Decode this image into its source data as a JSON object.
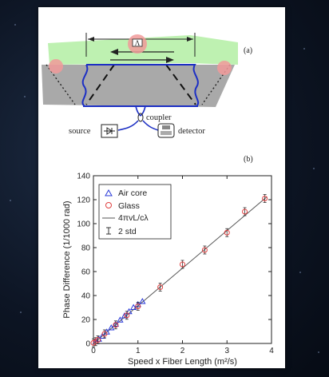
{
  "figure": {
    "panel_a_label": "(a)",
    "panel_b_label": "(b)",
    "diagram": {
      "lambda_label": "Λ",
      "coupler_label": "coupler",
      "source_label": "source",
      "detector_label": "detector"
    }
  },
  "colors": {
    "fiber": "#1c2fc4",
    "air_core": "#2a3ad8",
    "glass": "#e04040",
    "fit_line": "#555555",
    "flow_green": "#b7f0a8",
    "platform_gray": "#a9a9a9"
  },
  "chart_data": {
    "type": "scatter",
    "title": "",
    "xlabel": "Speed x Fiber Length (m²/s)",
    "ylabel": "Phase Difference (1/1000 rad)",
    "xlim": [
      0,
      4
    ],
    "ylim": [
      0,
      140
    ],
    "xticks": [
      "0",
      "1",
      "2",
      "3",
      "4"
    ],
    "yticks": [
      "0",
      "20",
      "40",
      "60",
      "80",
      "100",
      "120",
      "140"
    ],
    "grid": false,
    "legend_position": "top-left",
    "legend": [
      "Air core",
      "Glass",
      "4πvL/cλ",
      "2 std"
    ],
    "series": [
      {
        "name": "Air core",
        "marker": "triangle",
        "x": [
          0.05,
          0.12,
          0.2,
          0.3,
          0.4,
          0.5,
          0.6,
          0.7,
          0.8,
          0.9,
          1.0,
          1.1
        ],
        "y": [
          1.5,
          3.5,
          6,
          9.5,
          13,
          16,
          19.5,
          23,
          26.5,
          30,
          32.5,
          35
        ]
      },
      {
        "name": "Glass",
        "marker": "circle",
        "x": [
          0.0,
          0.05,
          0.1,
          0.25,
          0.5,
          0.75,
          1.0,
          1.5,
          2.0,
          2.5,
          3.0,
          3.4,
          3.85
        ],
        "y": [
          0.5,
          1.5,
          3,
          8,
          15.5,
          23.5,
          31,
          47,
          66,
          78,
          92.5,
          110,
          121
        ]
      },
      {
        "name": "4πvL/cλ",
        "kind": "line",
        "x": [
          0,
          3.9
        ],
        "y": [
          0,
          122.5
        ]
      }
    ]
  }
}
